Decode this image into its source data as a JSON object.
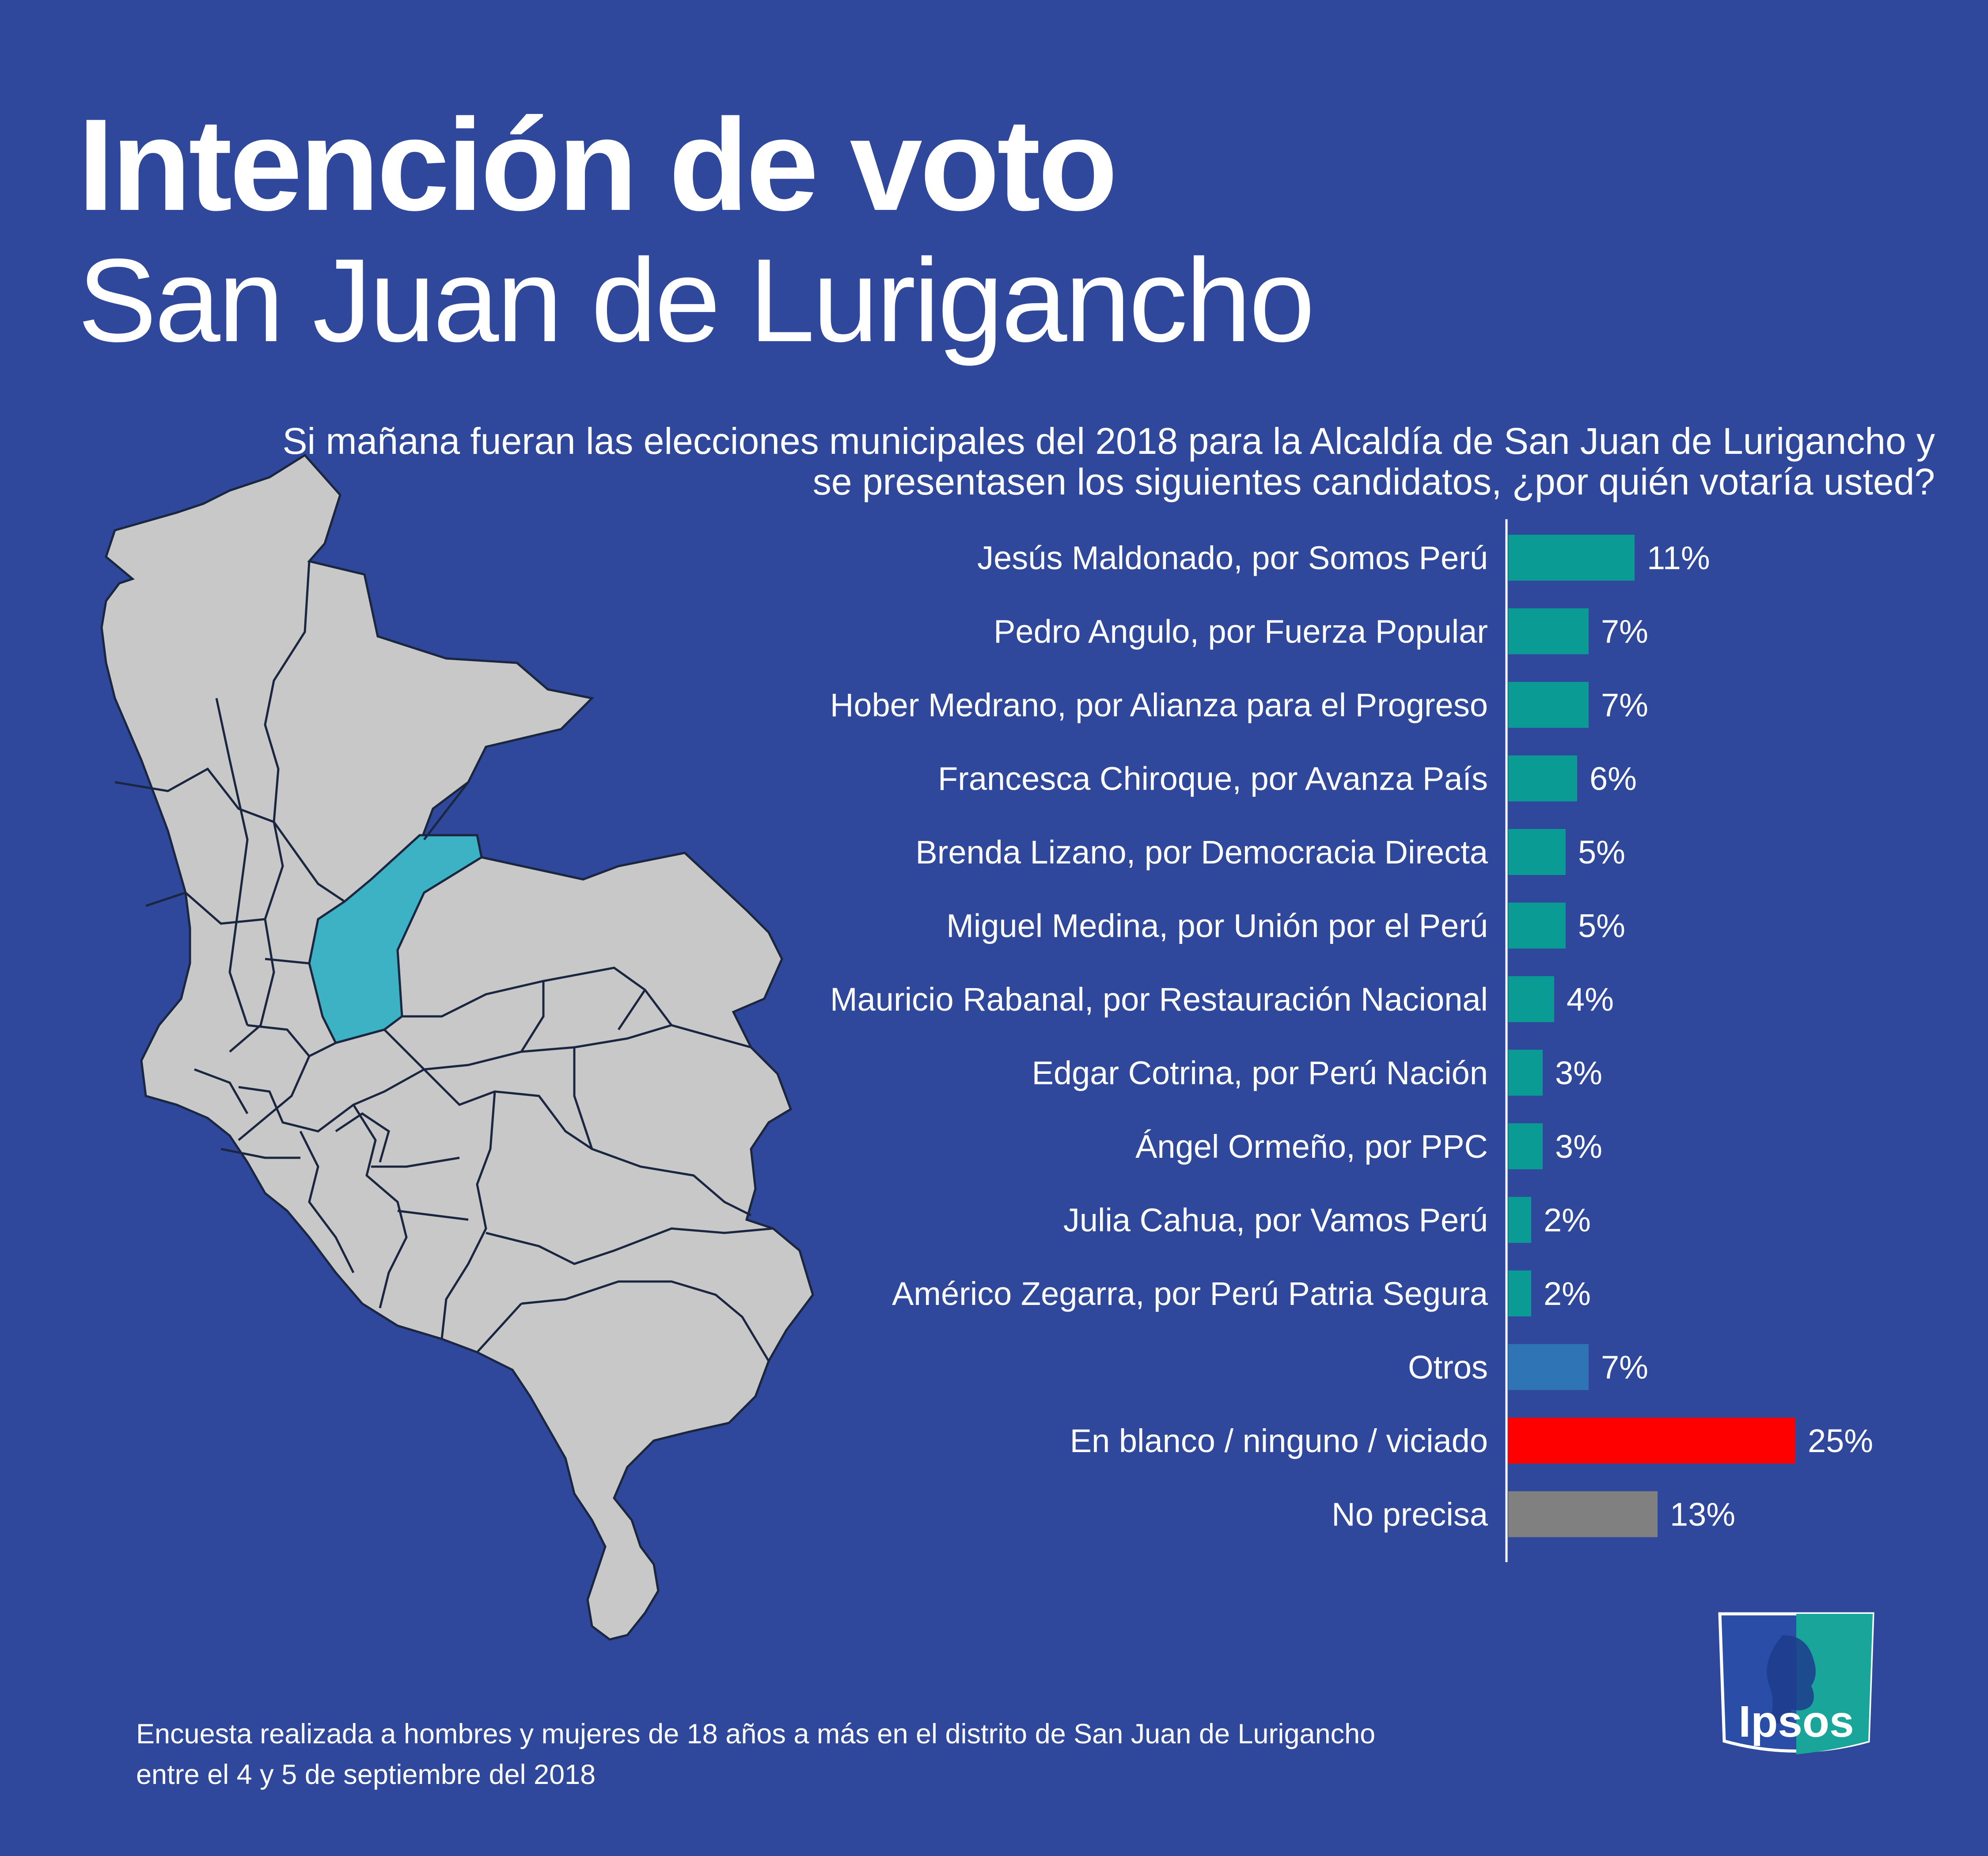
{
  "header": {
    "title": "Intención de voto",
    "subtitle": "San Juan de Lurigancho"
  },
  "question": "Si mañana fueran las elecciones municipales del 2018 para la Alcaldía de San Juan de Lurigancho y se presentasen los siguientes candidatos, ¿por quién votaría usted?",
  "footnote": {
    "line1": "Encuesta realizada a hombres y mujeres de 18 años a más en el distrito de San Juan de Lurigancho",
    "line2": "entre el 4 y 5 de septiembre del 2018"
  },
  "logo": {
    "text": "Ipsos",
    "icon": "ipsos-logo-icon"
  },
  "map": {
    "icon": "lima-districts-map",
    "highlight": "San Juan de Lurigancho",
    "highlight_color": "#3cb2c4",
    "base_color": "#c8c8c8"
  },
  "colors": {
    "background": "#30489b",
    "candidate": "#0a9c94",
    "otros": "#2f75b6",
    "blank": "#ff0000",
    "no_precisa": "#808080"
  },
  "chart_data": {
    "type": "bar",
    "orientation": "horizontal",
    "title": "Si mañana fueran las elecciones municipales del 2018 para la Alcaldía de San Juan de Lurigancho y se presentasen los siguientes candidatos, ¿por quién votaría usted?",
    "unit": "%",
    "xlim": [
      0,
      25
    ],
    "grid": false,
    "categories": [
      "Jesús Maldonado, por Somos Perú",
      "Pedro Angulo, por Fuerza Popular",
      "Hober Medrano, por Alianza para el Progreso",
      "Francesca Chiroque, por Avanza País",
      "Brenda Lizano, por Democracia Directa",
      "Miguel Medina, por Unión por el Perú",
      "Mauricio Rabanal, por Restauración Nacional",
      "Edgar Cotrina, por Perú Nación",
      "Ángel Ormeño, por PPC",
      "Julia Cahua, por Vamos Perú",
      "Américo Zegarra, por Perú Patria Segura",
      "Otros",
      "En blanco / ninguno / viciado",
      "No precisa"
    ],
    "values": [
      11,
      7,
      7,
      6,
      5,
      5,
      4,
      3,
      3,
      2,
      2,
      7,
      25,
      13
    ],
    "value_labels": [
      "11%",
      "7%",
      "7%",
      "6%",
      "5%",
      "5%",
      "4%",
      "3%",
      "3%",
      "2%",
      "2%",
      "7%",
      "25%",
      "13%"
    ],
    "bar_colors": [
      "#0a9c94",
      "#0a9c94",
      "#0a9c94",
      "#0a9c94",
      "#0a9c94",
      "#0a9c94",
      "#0a9c94",
      "#0a9c94",
      "#0a9c94",
      "#0a9c94",
      "#0a9c94",
      "#2f75b6",
      "#ff0000",
      "#808080"
    ]
  }
}
